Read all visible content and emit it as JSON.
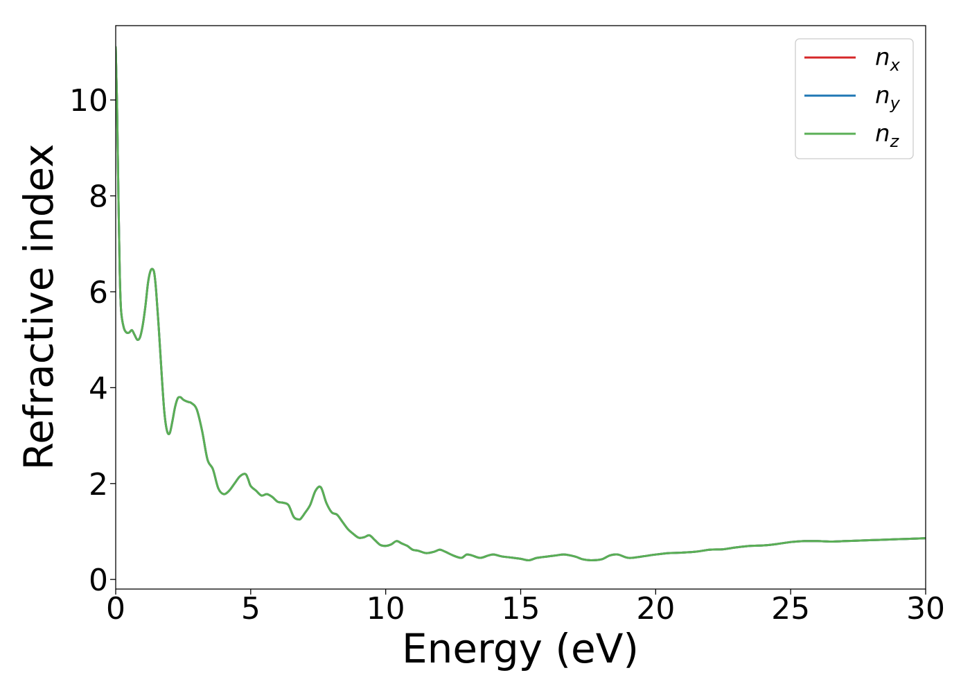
{
  "chart_data": {
    "type": "line",
    "title": "",
    "xlabel": "Energy (eV)",
    "ylabel": "Refractive index",
    "xlim": [
      0,
      30
    ],
    "ylim": [
      -0.2,
      11.55
    ],
    "xticks": [
      0,
      5,
      10,
      15,
      20,
      25,
      30
    ],
    "xtick_labels": [
      "0",
      "5",
      "10",
      "15",
      "20",
      "25",
      "30"
    ],
    "yticks": [
      0,
      2,
      4,
      6,
      8,
      10
    ],
    "ytick_labels": [
      "0",
      "2",
      "4",
      "6",
      "8",
      "10"
    ],
    "grid": false,
    "legend_position": "top-right",
    "series": [
      {
        "name": "n_x",
        "label_base": "n",
        "label_sub": "x",
        "color": "#d62728",
        "x": [
          0.0,
          0.05,
          0.1,
          0.15,
          0.2,
          0.3,
          0.4,
          0.5,
          0.6,
          0.7,
          0.8,
          0.9,
          1.0,
          1.1,
          1.2,
          1.3,
          1.4,
          1.45,
          1.5,
          1.6,
          1.7,
          1.8,
          1.9,
          2.0,
          2.1,
          2.2,
          2.3,
          2.4,
          2.5,
          2.6,
          2.7,
          2.8,
          3.0,
          3.2,
          3.4,
          3.6,
          3.8,
          4.0,
          4.2,
          4.4,
          4.6,
          4.8,
          4.9,
          5.0,
          5.2,
          5.4,
          5.6,
          5.8,
          6.0,
          6.2,
          6.4,
          6.6,
          6.8,
          6.9,
          7.0,
          7.2,
          7.4,
          7.6,
          7.8,
          8.0,
          8.2,
          8.4,
          8.6,
          8.8,
          9.0,
          9.2,
          9.4,
          9.6,
          9.8,
          10.0,
          10.2,
          10.4,
          10.6,
          10.8,
          11.0,
          11.2,
          11.5,
          11.8,
          12.0,
          12.2,
          12.5,
          12.8,
          13.0,
          13.2,
          13.5,
          13.8,
          14.0,
          14.3,
          14.6,
          15.0,
          15.3,
          15.6,
          16.0,
          16.3,
          16.6,
          17.0,
          17.3,
          17.6,
          18.0,
          18.3,
          18.6,
          19.0,
          19.5,
          20.0,
          20.5,
          21.0,
          21.5,
          22.0,
          22.5,
          23.0,
          23.5,
          24.0,
          24.5,
          25.0,
          25.5,
          26.0,
          26.5,
          27.0,
          27.5,
          28.0,
          28.5,
          29.0,
          29.5,
          30.0
        ],
        "y": [
          11.1,
          9.9,
          8.0,
          6.4,
          5.6,
          5.25,
          5.15,
          5.15,
          5.2,
          5.1,
          5.0,
          5.05,
          5.3,
          5.7,
          6.2,
          6.45,
          6.45,
          6.3,
          6.0,
          5.2,
          4.3,
          3.5,
          3.1,
          3.05,
          3.3,
          3.6,
          3.78,
          3.8,
          3.75,
          3.72,
          3.7,
          3.68,
          3.55,
          3.1,
          2.5,
          2.3,
          1.9,
          1.78,
          1.85,
          2.0,
          2.15,
          2.2,
          2.1,
          1.95,
          1.85,
          1.75,
          1.78,
          1.72,
          1.62,
          1.6,
          1.55,
          1.3,
          1.25,
          1.3,
          1.38,
          1.55,
          1.85,
          1.92,
          1.6,
          1.4,
          1.35,
          1.2,
          1.05,
          0.95,
          0.87,
          0.88,
          0.92,
          0.82,
          0.72,
          0.7,
          0.73,
          0.8,
          0.75,
          0.7,
          0.62,
          0.6,
          0.55,
          0.58,
          0.62,
          0.58,
          0.5,
          0.45,
          0.52,
          0.5,
          0.45,
          0.5,
          0.52,
          0.48,
          0.46,
          0.43,
          0.4,
          0.45,
          0.48,
          0.5,
          0.52,
          0.48,
          0.42,
          0.4,
          0.42,
          0.5,
          0.52,
          0.45,
          0.48,
          0.52,
          0.55,
          0.56,
          0.58,
          0.62,
          0.63,
          0.67,
          0.7,
          0.71,
          0.74,
          0.78,
          0.8,
          0.8,
          0.79,
          0.8,
          0.81,
          0.82,
          0.83,
          0.84,
          0.85,
          0.86
        ]
      },
      {
        "name": "n_y",
        "label_base": "n",
        "label_sub": "y",
        "color": "#1f77b4",
        "x": [
          0.0,
          0.05,
          0.1,
          0.15,
          0.2,
          0.3,
          0.4,
          0.5,
          0.6,
          0.7,
          0.8,
          0.9,
          1.0,
          1.1,
          1.2,
          1.3,
          1.4,
          1.45,
          1.5,
          1.6,
          1.7,
          1.8,
          1.9,
          2.0,
          2.1,
          2.2,
          2.3,
          2.4,
          2.5,
          2.6,
          2.7,
          2.8,
          3.0,
          3.2,
          3.4,
          3.6,
          3.8,
          4.0,
          4.2,
          4.4,
          4.6,
          4.8,
          4.9,
          5.0,
          5.2,
          5.4,
          5.6,
          5.8,
          6.0,
          6.2,
          6.4,
          6.6,
          6.8,
          6.9,
          7.0,
          7.2,
          7.4,
          7.6,
          7.8,
          8.0,
          8.2,
          8.4,
          8.6,
          8.8,
          9.0,
          9.2,
          9.4,
          9.6,
          9.8,
          10.0,
          10.2,
          10.4,
          10.6,
          10.8,
          11.0,
          11.2,
          11.5,
          11.8,
          12.0,
          12.2,
          12.5,
          12.8,
          13.0,
          13.2,
          13.5,
          13.8,
          14.0,
          14.3,
          14.6,
          15.0,
          15.3,
          15.6,
          16.0,
          16.3,
          16.6,
          17.0,
          17.3,
          17.6,
          18.0,
          18.3,
          18.6,
          19.0,
          19.5,
          20.0,
          20.5,
          21.0,
          21.5,
          22.0,
          22.5,
          23.0,
          23.5,
          24.0,
          24.5,
          25.0,
          25.5,
          26.0,
          26.5,
          27.0,
          27.5,
          28.0,
          28.5,
          29.0,
          29.5,
          30.0
        ],
        "y": [
          11.1,
          9.9,
          8.0,
          6.4,
          5.6,
          5.25,
          5.15,
          5.15,
          5.2,
          5.1,
          5.0,
          5.05,
          5.3,
          5.7,
          6.2,
          6.45,
          6.45,
          6.3,
          6.0,
          5.2,
          4.3,
          3.5,
          3.1,
          3.05,
          3.3,
          3.6,
          3.78,
          3.8,
          3.75,
          3.72,
          3.7,
          3.68,
          3.55,
          3.1,
          2.5,
          2.3,
          1.9,
          1.78,
          1.85,
          2.0,
          2.15,
          2.2,
          2.1,
          1.95,
          1.85,
          1.75,
          1.78,
          1.72,
          1.62,
          1.6,
          1.55,
          1.3,
          1.25,
          1.3,
          1.38,
          1.55,
          1.85,
          1.92,
          1.6,
          1.4,
          1.35,
          1.2,
          1.05,
          0.95,
          0.87,
          0.88,
          0.92,
          0.82,
          0.72,
          0.7,
          0.73,
          0.8,
          0.75,
          0.7,
          0.62,
          0.6,
          0.55,
          0.58,
          0.62,
          0.58,
          0.5,
          0.45,
          0.52,
          0.5,
          0.45,
          0.5,
          0.52,
          0.48,
          0.46,
          0.43,
          0.4,
          0.45,
          0.48,
          0.5,
          0.52,
          0.48,
          0.42,
          0.4,
          0.42,
          0.5,
          0.52,
          0.45,
          0.48,
          0.52,
          0.55,
          0.56,
          0.58,
          0.62,
          0.63,
          0.67,
          0.7,
          0.71,
          0.74,
          0.78,
          0.8,
          0.8,
          0.79,
          0.8,
          0.81,
          0.82,
          0.83,
          0.84,
          0.85,
          0.86
        ]
      },
      {
        "name": "n_z",
        "label_base": "n",
        "label_sub": "z",
        "color": "#5aaf55",
        "x": [
          0.0,
          0.05,
          0.1,
          0.15,
          0.2,
          0.3,
          0.4,
          0.5,
          0.6,
          0.7,
          0.8,
          0.9,
          1.0,
          1.1,
          1.2,
          1.3,
          1.4,
          1.45,
          1.5,
          1.6,
          1.7,
          1.8,
          1.9,
          2.0,
          2.1,
          2.2,
          2.3,
          2.4,
          2.5,
          2.6,
          2.7,
          2.8,
          3.0,
          3.2,
          3.4,
          3.6,
          3.8,
          4.0,
          4.2,
          4.4,
          4.6,
          4.8,
          4.9,
          5.0,
          5.2,
          5.4,
          5.6,
          5.8,
          6.0,
          6.2,
          6.4,
          6.6,
          6.8,
          6.9,
          7.0,
          7.2,
          7.4,
          7.6,
          7.8,
          8.0,
          8.2,
          8.4,
          8.6,
          8.8,
          9.0,
          9.2,
          9.4,
          9.6,
          9.8,
          10.0,
          10.2,
          10.4,
          10.6,
          10.8,
          11.0,
          11.2,
          11.5,
          11.8,
          12.0,
          12.2,
          12.5,
          12.8,
          13.0,
          13.2,
          13.5,
          13.8,
          14.0,
          14.3,
          14.6,
          15.0,
          15.3,
          15.6,
          16.0,
          16.3,
          16.6,
          17.0,
          17.3,
          17.6,
          18.0,
          18.3,
          18.6,
          19.0,
          19.5,
          20.0,
          20.5,
          21.0,
          21.5,
          22.0,
          22.5,
          23.0,
          23.5,
          24.0,
          24.5,
          25.0,
          25.5,
          26.0,
          26.5,
          27.0,
          27.5,
          28.0,
          28.5,
          29.0,
          29.5,
          30.0
        ],
        "y": [
          11.1,
          9.9,
          8.0,
          6.4,
          5.6,
          5.25,
          5.15,
          5.15,
          5.2,
          5.1,
          5.0,
          5.05,
          5.3,
          5.7,
          6.2,
          6.45,
          6.45,
          6.3,
          6.0,
          5.2,
          4.3,
          3.5,
          3.1,
          3.05,
          3.3,
          3.6,
          3.78,
          3.8,
          3.75,
          3.72,
          3.7,
          3.68,
          3.55,
          3.1,
          2.5,
          2.3,
          1.9,
          1.78,
          1.85,
          2.0,
          2.15,
          2.2,
          2.1,
          1.95,
          1.85,
          1.75,
          1.78,
          1.72,
          1.62,
          1.6,
          1.55,
          1.3,
          1.25,
          1.3,
          1.38,
          1.55,
          1.85,
          1.92,
          1.6,
          1.4,
          1.35,
          1.2,
          1.05,
          0.95,
          0.87,
          0.88,
          0.92,
          0.82,
          0.72,
          0.7,
          0.73,
          0.8,
          0.75,
          0.7,
          0.62,
          0.6,
          0.55,
          0.58,
          0.62,
          0.58,
          0.5,
          0.45,
          0.52,
          0.5,
          0.45,
          0.5,
          0.52,
          0.48,
          0.46,
          0.43,
          0.4,
          0.45,
          0.48,
          0.5,
          0.52,
          0.48,
          0.42,
          0.4,
          0.42,
          0.5,
          0.52,
          0.45,
          0.48,
          0.52,
          0.55,
          0.56,
          0.58,
          0.62,
          0.63,
          0.67,
          0.7,
          0.71,
          0.74,
          0.78,
          0.8,
          0.8,
          0.79,
          0.8,
          0.81,
          0.82,
          0.83,
          0.84,
          0.85,
          0.86
        ]
      }
    ]
  }
}
